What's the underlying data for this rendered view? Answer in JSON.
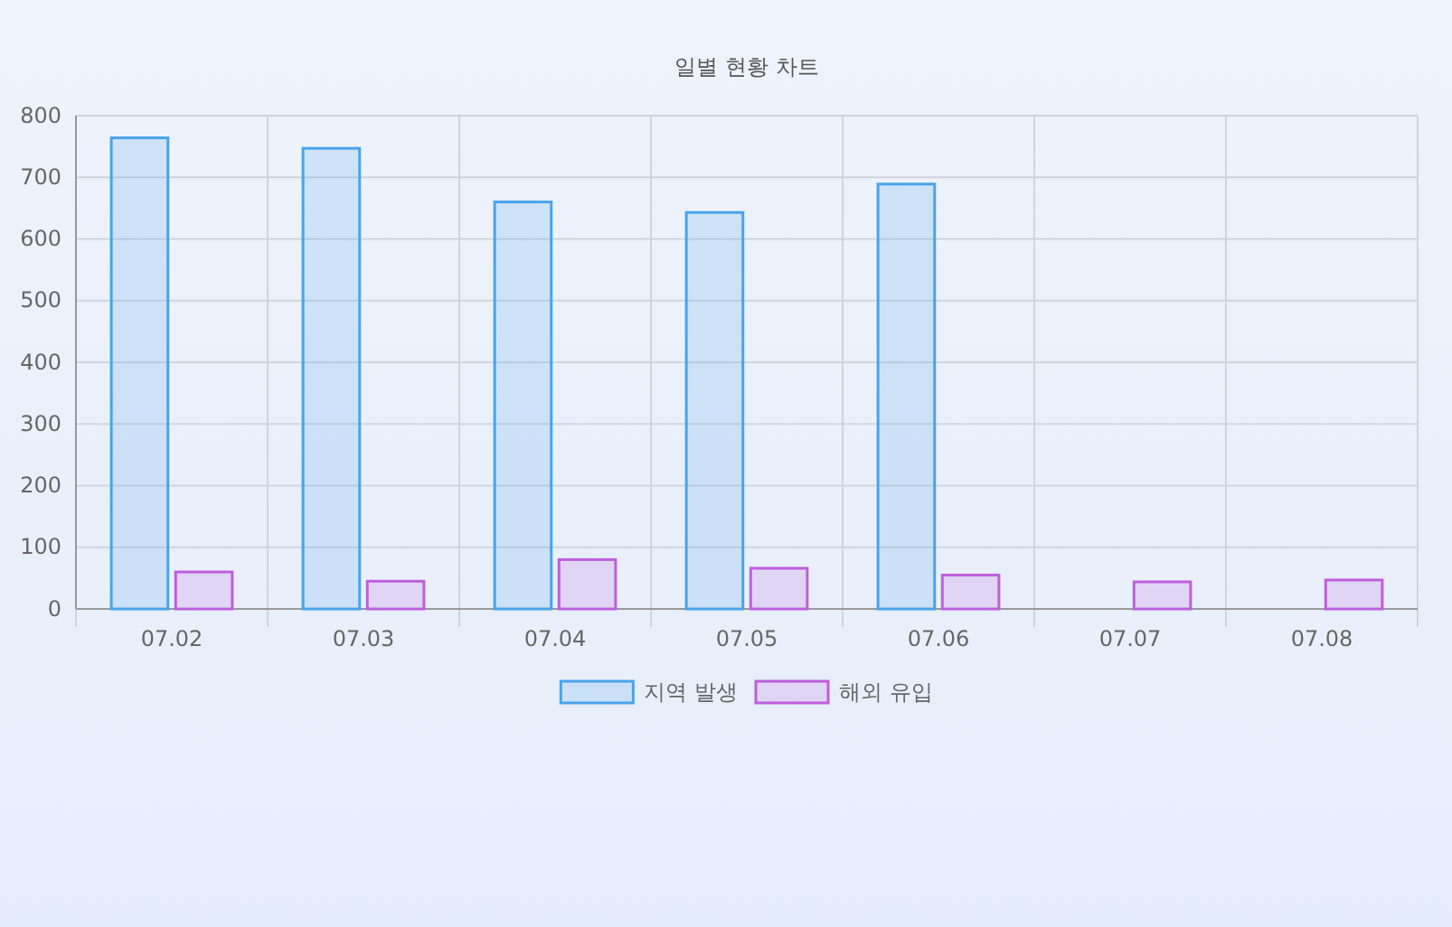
{
  "chart_data": {
    "type": "bar",
    "title": "일별 현황 차트",
    "categories": [
      "07.02",
      "07.03",
      "07.04",
      "07.05",
      "07.06",
      "07.07",
      "07.08"
    ],
    "series": [
      {
        "name": "지역 발생",
        "color": "#4aa3ea",
        "values": [
          764,
          747,
          660,
          643,
          689,
          null,
          null
        ]
      },
      {
        "name": "해외 유입",
        "color": "#bd5fdc",
        "values": [
          60,
          45,
          80,
          66,
          55,
          44,
          47
        ]
      }
    ],
    "ylim": [
      0,
      800
    ],
    "yticks": [
      0,
      100,
      200,
      300,
      400,
      500,
      600,
      700,
      800
    ],
    "grid": true,
    "legend": "bottom"
  }
}
